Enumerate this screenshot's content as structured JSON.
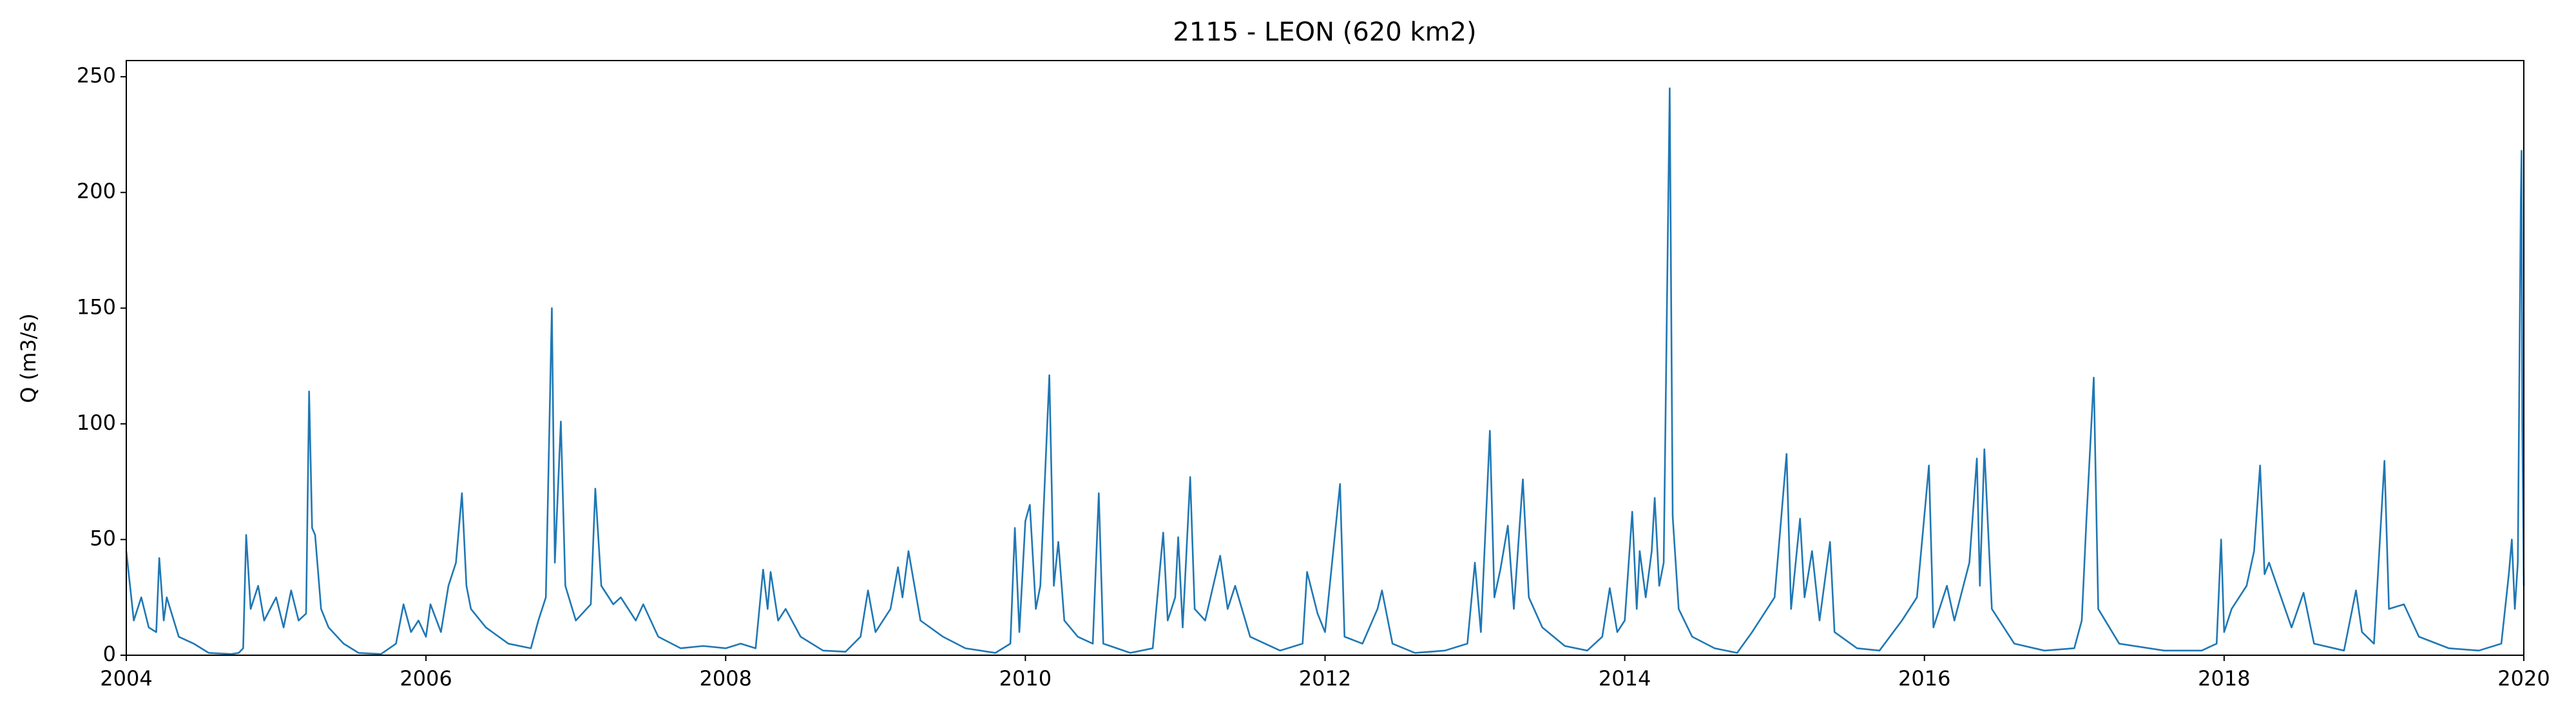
{
  "chart_data": {
    "type": "line",
    "title": "2115 - LEON (620 km2)",
    "y_label": "Q (m3/s)",
    "xlim": [
      2004,
      2020
    ],
    "xticks": [
      2004,
      2006,
      2008,
      2010,
      2012,
      2014,
      2016,
      2018,
      2020
    ],
    "ylim": [
      0,
      257
    ],
    "yticks": [
      0,
      50,
      100,
      150,
      200,
      250
    ],
    "grid": false,
    "series": [
      {
        "name": "Q",
        "color": "#1f77b4",
        "x": [
          2004.0,
          2004.05,
          2004.1,
          2004.15,
          2004.2,
          2004.22,
          2004.25,
          2004.27,
          2004.35,
          2004.45,
          2004.55,
          2004.7,
          2004.75,
          2004.78,
          2004.8,
          2004.83,
          2004.88,
          2004.92,
          2005.0,
          2005.05,
          2005.1,
          2005.15,
          2005.2,
          2005.22,
          2005.24,
          2005.26,
          2005.3,
          2005.35,
          2005.45,
          2005.55,
          2005.7,
          2005.8,
          2005.85,
          2005.9,
          2005.95,
          2006.0,
          2006.03,
          2006.1,
          2006.15,
          2006.2,
          2006.24,
          2006.27,
          2006.3,
          2006.4,
          2006.55,
          2006.7,
          2006.75,
          2006.8,
          2006.84,
          2006.86,
          2006.9,
          2006.93,
          2007.0,
          2007.1,
          2007.13,
          2007.17,
          2007.25,
          2007.3,
          2007.4,
          2007.45,
          2007.55,
          2007.7,
          2007.85,
          2008.0,
          2008.1,
          2008.2,
          2008.25,
          2008.28,
          2008.3,
          2008.35,
          2008.4,
          2008.5,
          2008.65,
          2008.8,
          2008.9,
          2008.95,
          2009.0,
          2009.1,
          2009.15,
          2009.18,
          2009.22,
          2009.3,
          2009.45,
          2009.6,
          2009.8,
          2009.9,
          2009.93,
          2009.96,
          2010.0,
          2010.03,
          2010.07,
          2010.1,
          2010.16,
          2010.19,
          2010.22,
          2010.26,
          2010.35,
          2010.45,
          2010.49,
          2010.52,
          2010.7,
          2010.85,
          2010.92,
          2010.95,
          2011.0,
          2011.02,
          2011.05,
          2011.1,
          2011.13,
          2011.2,
          2011.3,
          2011.35,
          2011.4,
          2011.5,
          2011.7,
          2011.85,
          2011.88,
          2011.95,
          2012.0,
          2012.1,
          2012.13,
          2012.25,
          2012.35,
          2012.38,
          2012.45,
          2012.6,
          2012.8,
          2012.95,
          2013.0,
          2013.04,
          2013.1,
          2013.13,
          2013.17,
          2013.22,
          2013.26,
          2013.32,
          2013.36,
          2013.45,
          2013.6,
          2013.75,
          2013.85,
          2013.9,
          2013.95,
          2014.0,
          2014.05,
          2014.08,
          2014.1,
          2014.14,
          2014.18,
          2014.2,
          2014.23,
          2014.26,
          2014.3,
          2014.32,
          2014.36,
          2014.45,
          2014.6,
          2014.75,
          2014.85,
          2014.95,
          2015.0,
          2015.08,
          2015.11,
          2015.17,
          2015.2,
          2015.25,
          2015.3,
          2015.37,
          2015.4,
          2015.55,
          2015.7,
          2015.85,
          2015.95,
          2016.03,
          2016.06,
          2016.15,
          2016.2,
          2016.3,
          2016.35,
          2016.37,
          2016.4,
          2016.45,
          2016.6,
          2016.8,
          2017.0,
          2017.05,
          2017.08,
          2017.13,
          2017.16,
          2017.3,
          2017.6,
          2017.85,
          2017.95,
          2017.98,
          2018.0,
          2018.05,
          2018.15,
          2018.2,
          2018.24,
          2018.27,
          2018.3,
          2018.38,
          2018.45,
          2018.53,
          2018.6,
          2018.8,
          2018.88,
          2018.92,
          2019.0,
          2019.07,
          2019.1,
          2019.2,
          2019.3,
          2019.5,
          2019.7,
          2019.85,
          2019.9,
          2019.92,
          2019.94,
          2019.96,
          2019.98,
          2019.985,
          2019.99,
          2020.0
        ],
        "values": [
          45,
          15,
          25,
          12,
          10,
          42,
          15,
          25,
          8,
          5,
          1,
          0.5,
          1,
          3,
          52,
          20,
          30,
          15,
          25,
          12,
          28,
          15,
          18,
          114,
          55,
          52,
          20,
          12,
          5,
          1,
          0.5,
          5,
          22,
          10,
          15,
          8,
          22,
          10,
          30,
          40,
          70,
          30,
          20,
          12,
          5,
          3,
          15,
          25,
          150,
          40,
          101,
          30,
          15,
          22,
          72,
          30,
          22,
          25,
          15,
          22,
          8,
          3,
          4,
          3,
          5,
          3,
          37,
          20,
          36,
          15,
          20,
          8,
          2,
          1.5,
          8,
          28,
          10,
          20,
          38,
          25,
          45,
          15,
          8,
          3,
          1,
          5,
          55,
          10,
          58,
          65,
          20,
          30,
          121,
          30,
          49,
          15,
          8,
          5,
          70,
          5,
          1,
          3,
          53,
          15,
          25,
          51,
          12,
          77,
          20,
          15,
          43,
          20,
          30,
          8,
          2,
          5,
          36,
          18,
          10,
          74,
          8,
          5,
          20,
          28,
          5,
          1,
          2,
          5,
          40,
          10,
          97,
          25,
          37,
          56,
          20,
          76,
          25,
          12,
          4,
          2,
          8,
          29,
          10,
          15,
          62,
          20,
          45,
          25,
          45,
          68,
          30,
          40,
          245,
          60,
          20,
          8,
          3,
          1,
          10,
          20,
          25,
          87,
          20,
          59,
          25,
          45,
          15,
          49,
          10,
          3,
          2,
          15,
          25,
          82,
          12,
          30,
          15,
          40,
          85,
          30,
          89,
          20,
          5,
          2,
          3,
          15,
          57,
          120,
          20,
          5,
          2,
          2,
          5,
          50,
          10,
          20,
          30,
          45,
          82,
          35,
          40,
          25,
          12,
          27,
          5,
          2,
          28,
          10,
          5,
          84,
          20,
          22,
          8,
          3,
          2,
          5,
          35,
          50,
          20,
          40,
          197,
          218,
          100,
          30
        ]
      }
    ]
  }
}
